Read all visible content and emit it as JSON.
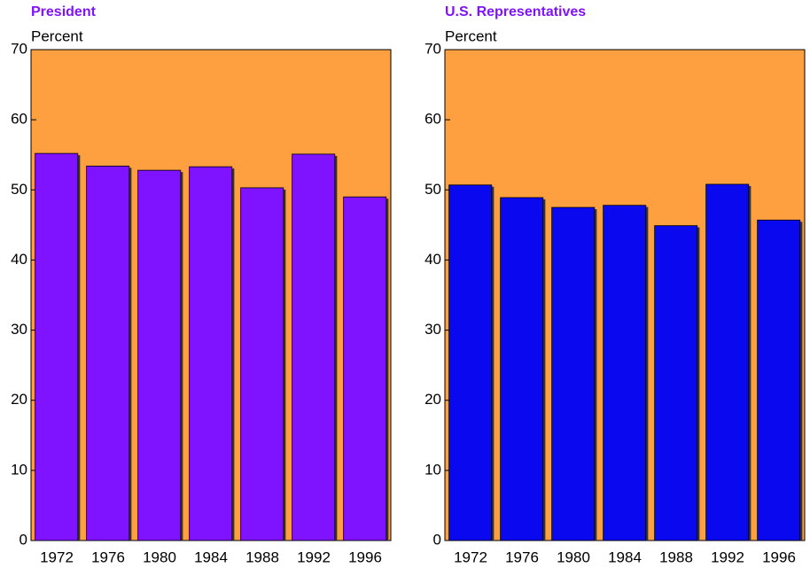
{
  "chart_data": [
    {
      "type": "bar",
      "title": "President",
      "y_label": "Percent",
      "categories": [
        "1972",
        "1976",
        "1980",
        "1984",
        "1988",
        "1992",
        "1996"
      ],
      "values": [
        55.2,
        53.4,
        52.8,
        53.3,
        50.3,
        55.1,
        49.0
      ],
      "color": "#7f12ff",
      "background": "#ffa040",
      "ylim": [
        0,
        70
      ],
      "yticks": [
        0,
        10,
        20,
        30,
        40,
        50,
        60,
        70
      ]
    },
    {
      "type": "bar",
      "title": "U.S. Representatives",
      "y_label": "Percent",
      "categories": [
        "1972",
        "1976",
        "1980",
        "1984",
        "1988",
        "1992",
        "1996"
      ],
      "values": [
        50.7,
        48.9,
        47.5,
        47.8,
        44.9,
        50.8,
        45.7
      ],
      "color": "#0a08ee",
      "background": "#ffa040",
      "ylim": [
        0,
        70
      ],
      "yticks": [
        0,
        10,
        20,
        30,
        40,
        50,
        60,
        70
      ]
    }
  ]
}
